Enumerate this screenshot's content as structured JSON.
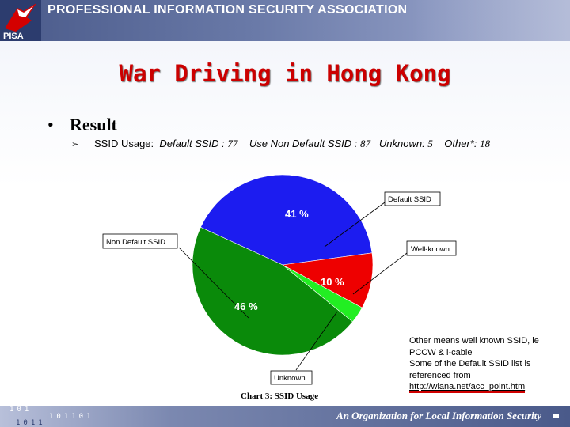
{
  "header": {
    "org_title": "PROFESSIONAL INFORMATION SECURITY ASSOCIATION",
    "logo_text": "PISA"
  },
  "slide": {
    "title": "War Driving in Hong Kong",
    "bullet": "Result",
    "ssid_usage": {
      "label": "SSID Usage:",
      "default_label": "Default SSID :",
      "default_value": "77",
      "nondefault_label": "Use Non Default SSID :",
      "nondefault_value": "87",
      "unknown_label": "Unknown:",
      "unknown_value": "5",
      "other_label": "Other*:",
      "other_value": "18"
    },
    "note_lines": [
      "Other means well known SSID, ie",
      "PCCW & i-cable",
      "Some of the Default SSID list is",
      "referenced from"
    ],
    "note_url": "http://wlana.net/acc_point.htm"
  },
  "chart_data": {
    "type": "pie",
    "title": "Chart  3: SSID Usage",
    "slices": [
      {
        "label": "Default SSID",
        "percent_label": "41 %",
        "value": 41,
        "color": "#1c1cf0"
      },
      {
        "label": "Well-known",
        "percent_label": "10 %",
        "value": 10,
        "color": "#ee0000"
      },
      {
        "label": "Unknown",
        "percent_label": "",
        "value": 3,
        "color": "#22ee22"
      },
      {
        "label": "Non Default SSID",
        "percent_label": "46 %",
        "value": 46,
        "color": "#0a8a0a"
      }
    ]
  },
  "footer": {
    "binary_1": "101",
    "binary_2": "101101",
    "binary_3": "1011",
    "tagline": "An Organization for Local Information Security"
  }
}
